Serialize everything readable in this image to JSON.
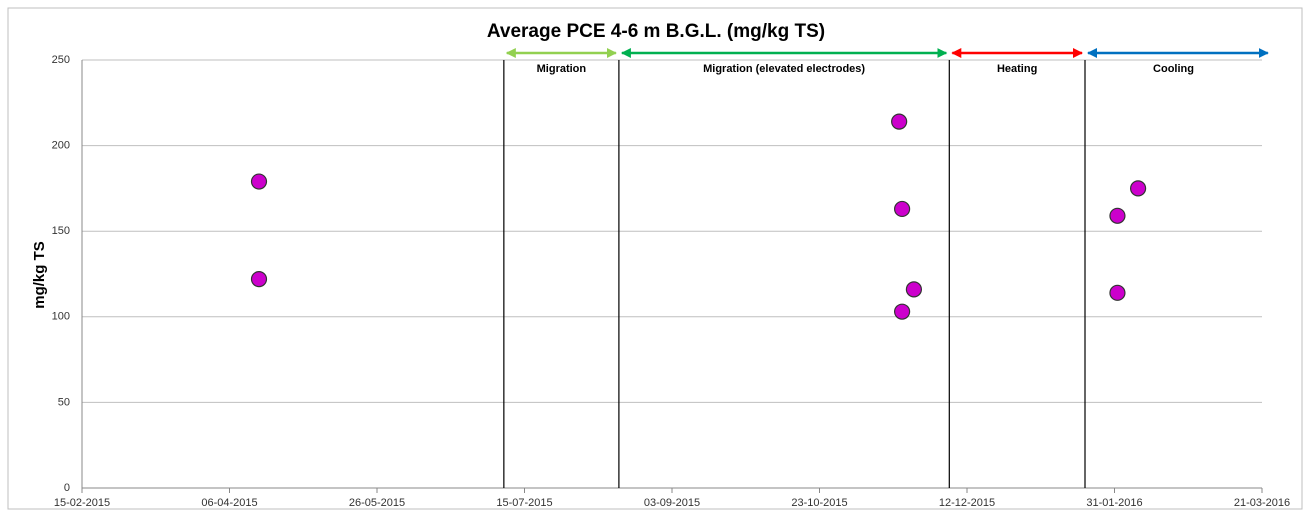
{
  "chart_data": {
    "type": "scatter",
    "title": "Average PCE 4-6 m B.G.L. (mg/kg TS)",
    "y_label": "mg/kg TS",
    "x": [
      "2015-04-16",
      "2015-04-16",
      "2015-11-19",
      "2015-11-20",
      "2015-11-24",
      "2015-11-20",
      "2016-02-01",
      "2016-02-01",
      "2016-02-08"
    ],
    "values": [
      179,
      122,
      214,
      163,
      116,
      103,
      159,
      114,
      175
    ],
    "color": "#cc00cc",
    "xlim": [
      "2015-02-15",
      "2016-03-21"
    ],
    "xticks": [
      {
        "value": "2015-02-15",
        "label": "15-02-2015"
      },
      {
        "value": "2015-04-06",
        "label": "06-04-2015"
      },
      {
        "value": "2015-05-26",
        "label": "26-05-2015"
      },
      {
        "value": "2015-07-15",
        "label": "15-07-2015"
      },
      {
        "value": "2015-09-03",
        "label": "03-09-2015"
      },
      {
        "value": "2015-10-23",
        "label": "23-10-2015"
      },
      {
        "value": "2015-12-12",
        "label": "12-12-2015"
      },
      {
        "value": "2016-01-31",
        "label": "31-01-2016"
      },
      {
        "value": "2016-03-21",
        "label": "21-03-2016"
      }
    ],
    "ylim": [
      0,
      250
    ],
    "yticks": [
      0,
      50,
      100,
      150,
      200,
      250
    ],
    "grid": true,
    "phases": [
      {
        "label": "Migration",
        "start": "2015-07-08",
        "end": "2015-08-16",
        "color": "#92d050"
      },
      {
        "label": "Migration (elevated electrodes)",
        "start": "2015-08-16",
        "end": "2015-12-06",
        "color": "#00b050"
      },
      {
        "label": "Heating",
        "start": "2015-12-06",
        "end": "2016-01-21",
        "color": "#ff0000"
      },
      {
        "label": "Cooling",
        "start": "2016-01-21",
        "end": "2016-03-24",
        "color": "#0070c0"
      }
    ]
  }
}
